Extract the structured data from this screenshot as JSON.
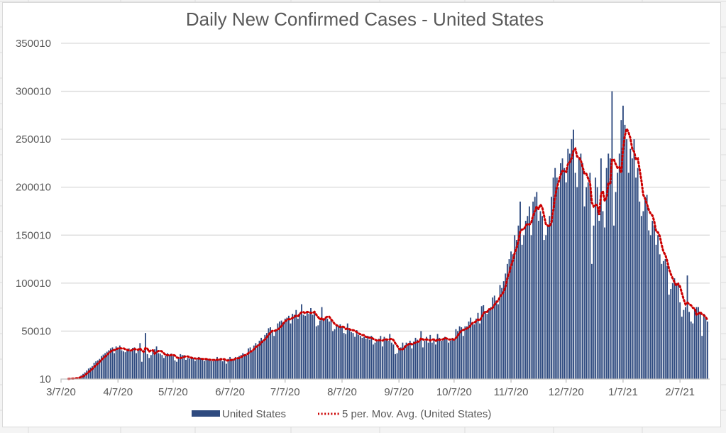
{
  "chart_data": {
    "type": "bar",
    "title": "Daily New Confirmed Cases - United States",
    "xlabel": "",
    "ylabel": "",
    "ylim": [
      10,
      350010
    ],
    "yticks": [
      "10",
      "50010",
      "100010",
      "150010",
      "200010",
      "250010",
      "300010",
      "350010"
    ],
    "ytick_values": [
      10,
      50010,
      100010,
      150010,
      200010,
      250010,
      300010,
      350010
    ],
    "xticks": [
      "3/7/20",
      "4/7/20",
      "5/7/20",
      "6/7/20",
      "7/7/20",
      "8/7/20",
      "9/7/20",
      "10/7/20",
      "11/7/20",
      "12/7/20",
      "1/7/21",
      "2/7/21"
    ],
    "xtick_day_offsets": [
      0,
      31,
      61,
      92,
      122,
      153,
      184,
      214,
      245,
      275,
      306,
      337
    ],
    "start_date": "3/7/20",
    "grid": true,
    "legend_position": "bottom",
    "colors": {
      "bar": "#2e4a7f",
      "moving_avg": "#cc0000",
      "grid": "#d9d9d9",
      "text": "#595959"
    },
    "series": [
      {
        "name": "United States",
        "kind": "bar",
        "values": [
          120,
          90,
          200,
          300,
          400,
          500,
          700,
          900,
          1100,
          1700,
          2500,
          3900,
          5400,
          7000,
          9000,
          11000,
          12000,
          13500,
          17000,
          18500,
          19500,
          21000,
          24000,
          25500,
          27000,
          28500,
          30000,
          32000,
          33000,
          27000,
          34000,
          33000,
          35000,
          30000,
          29000,
          28000,
          30500,
          32000,
          29000,
          32500,
          33000,
          27000,
          31000,
          37500,
          18000,
          29000,
          48000,
          26000,
          22000,
          25000,
          29000,
          31000,
          34000,
          27000,
          26500,
          25000,
          22000,
          24500,
          27000,
          25000,
          26500,
          24000,
          19500,
          18000,
          22000,
          26000,
          25000,
          25000,
          20000,
          22000,
          21500,
          23000,
          22000,
          19000,
          20500,
          23000,
          22000,
          20000,
          19000,
          20500,
          21000,
          20500,
          19000,
          18500,
          20000,
          23000,
          20000,
          22000,
          18500,
          20000,
          16000,
          21000,
          23000,
          20000,
          20000,
          23000,
          22000,
          24000,
          25000,
          27000,
          26000,
          25000,
          32000,
          33000,
          30000,
          35000,
          37500,
          36000,
          40000,
          43000,
          41000,
          46000,
          48000,
          53000,
          54000,
          50000,
          45000,
          52000,
          58000,
          60000,
          61000,
          59000,
          63000,
          64000,
          66000,
          58000,
          68000,
          67000,
          72000,
          63000,
          69000,
          78000,
          67000,
          66000,
          70000,
          68000,
          74000,
          67000,
          71000,
          55000,
          56000,
          61000,
          75000,
          62000,
          65000,
          63000,
          60000,
          62000,
          50000,
          52000,
          57000,
          55000,
          57000,
          54000,
          48000,
          47000,
          58000,
          53000,
          49000,
          48000,
          44000,
          51000,
          46000,
          45000,
          43000,
          44000,
          42000,
          45000,
          41000,
          45000,
          36000,
          38000,
          41000,
          42000,
          45000,
          34000,
          44000,
          42000,
          40000,
          47000,
          38000,
          36000,
          26000,
          27000,
          31000,
          33000,
          38000,
          35000,
          38000,
          36000,
          40000,
          32000,
          39000,
          43000,
          41000,
          40000,
          50000,
          33000,
          40000,
          44000,
          38000,
          46000,
          38000,
          40000,
          36000,
          47000,
          43000,
          40000,
          41000,
          44000,
          43000,
          38000,
          40000,
          43000,
          41000,
          52000,
          50000,
          55000,
          54000,
          45000,
          55000,
          55000,
          60000,
          64000,
          58000,
          57000,
          63000,
          69000,
          58000,
          76000,
          77000,
          71000,
          68000,
          72000,
          75000,
          85000,
          87000,
          82000,
          78000,
          98000,
          95000,
          102000,
          110000,
          120000,
          125000,
          133000,
          130000,
          150000,
          145000,
          160000,
          185000,
          140000,
          150000,
          165000,
          170000,
          180000,
          150000,
          185000,
          190000,
          195000,
          165000,
          175000,
          170000,
          145000,
          150000,
          160000,
          170000,
          190000,
          210000,
          220000,
          210000,
          200000,
          225000,
          230000,
          220000,
          205000,
          240000,
          235000,
          250000,
          260000,
          215000,
          200000,
          230000,
          235000,
          225000,
          180000,
          200000,
          205000,
          215000,
          120000,
          160000,
          210000,
          200000,
          165000,
          230000,
          175000,
          158000,
          220000,
          235000,
          230000,
          300000,
          160000,
          195000,
          215000,
          235000,
          270000,
          285000,
          265000,
          250000,
          215000,
          240000,
          230000,
          250000,
          210000,
          220000,
          185000,
          170000,
          175000,
          190000,
          192000,
          155000,
          150000,
          165000,
          160000,
          140000,
          150000,
          130000,
          120000,
          123000,
          125000,
          118000,
          88000,
          94000,
          100000,
          105000,
          100000,
          98000,
          80000,
          65000,
          72000,
          75000,
          108000,
          70000,
          60000,
          58000,
          72000,
          75000,
          75000,
          70000,
          45000,
          68000,
          65000,
          60000
        ]
      },
      {
        "name": "5 per. Mov. Avg. (United States)",
        "kind": "line",
        "style": "dotted",
        "window": 5
      }
    ]
  },
  "legend": {
    "bar_label": "United States",
    "line_label": "5 per. Mov. Avg. (United States)"
  }
}
